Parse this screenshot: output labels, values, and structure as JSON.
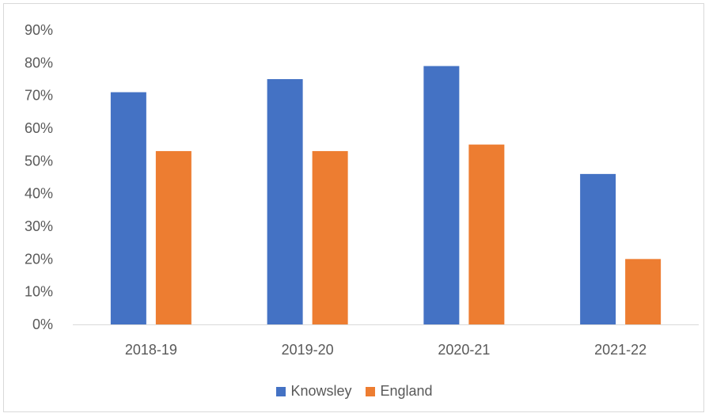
{
  "chart_data": {
    "type": "bar",
    "categories": [
      "2018-19",
      "2019-20",
      "2020-21",
      "2021-22"
    ],
    "series": [
      {
        "name": "Knowsley",
        "values": [
          71,
          75,
          79,
          46
        ],
        "color": "#4472C4"
      },
      {
        "name": "England",
        "values": [
          53,
          53,
          55,
          20
        ],
        "color": "#ED7D31"
      }
    ],
    "y_ticks": [
      "0%",
      "10%",
      "20%",
      "30%",
      "40%",
      "50%",
      "60%",
      "70%",
      "80%",
      "90%"
    ],
    "ylim": [
      0,
      90
    ],
    "title": "",
    "xlabel": "",
    "ylabel": "",
    "grid": false,
    "legend_position": "bottom"
  }
}
